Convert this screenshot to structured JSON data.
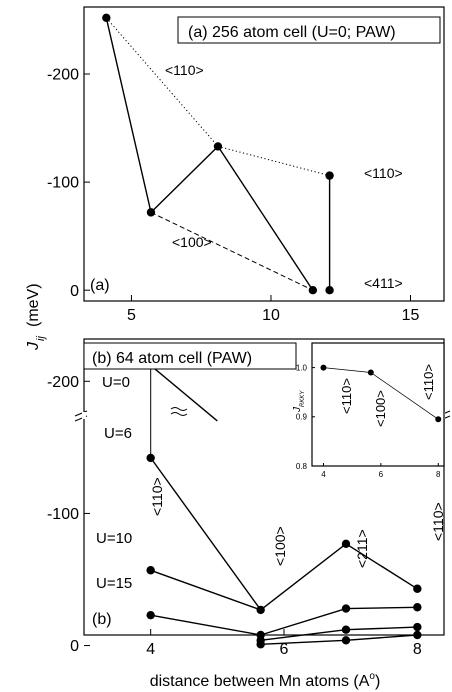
{
  "chart_data": [
    {
      "type": "scatter",
      "panel_label": "(a)",
      "legend_box": "(a) 256 atom cell (U=0; PAW)",
      "ylabel": "J",
      "ylabel_sub": "ij",
      "ylabel_unit": "(meV)",
      "xlim": [
        3.3,
        16.2
      ],
      "ylim": [
        10,
        -262
      ],
      "x_ticks": [
        5,
        10,
        15
      ],
      "x_tick_labels": [
        "5",
        "10",
        "15"
      ],
      "y_ticks": [
        0,
        -100,
        -200
      ],
      "y_tick_labels": [
        "0",
        "-100",
        "-200"
      ],
      "points": [
        {
          "x": 4.1,
          "y": -252
        },
        {
          "x": 5.7,
          "y": -72
        },
        {
          "x": 8.1,
          "y": -133
        },
        {
          "x": 11.5,
          "y": 0
        },
        {
          "x": 12.1,
          "y": -106
        },
        {
          "x": 12.1,
          "y": 0
        }
      ],
      "solid_path": [
        [
          4.1,
          -252
        ],
        [
          5.7,
          -72
        ],
        [
          8.1,
          -133
        ],
        [
          11.5,
          0
        ]
      ],
      "solid_vertical": [
        [
          12.1,
          -106
        ],
        [
          12.1,
          0
        ]
      ],
      "dotted_path": [
        [
          4.1,
          -252
        ],
        [
          8.1,
          -133
        ],
        [
          12.1,
          -106
        ]
      ],
      "dashed_path": [
        [
          5.7,
          -72
        ],
        [
          11.5,
          0
        ]
      ],
      "annotations": [
        "<110>",
        "<100>",
        "<110>",
        "<411>"
      ]
    },
    {
      "type": "line",
      "panel_label": "(b)",
      "legend_box": "(b) 64 atom cell (PAW)",
      "xlabel": "distance between Mn atoms (A",
      "xlabel_sup": "o",
      "xlabel_end": ")",
      "xlim": [
        3.0,
        8.4
      ],
      "ylim": [
        -8,
        -232
      ],
      "x_ticks": [
        4,
        6,
        8
      ],
      "x_tick_labels": [
        "4",
        "6",
        "8"
      ],
      "y_ticks": [
        0,
        -100,
        -200
      ],
      "y_tick_labels": [
        "0",
        "-100",
        "-200"
      ],
      "axis_break": true,
      "x": [
        4.0,
        5.65,
        6.93,
        8.0
      ],
      "series": [
        {
          "name": "U=0",
          "values": [
            -212,
            null,
            null,
            null
          ]
        },
        {
          "name": "U=6",
          "values": [
            -142,
            -8,
            -12,
            -14
          ]
        },
        {
          "name": "U=10",
          "values": [
            -57,
            -27,
            -28,
            -29
          ]
        },
        {
          "name": "U=15",
          "values": [
            -23,
            -4,
            -28,
            -8
          ]
        }
      ],
      "top_series": [
        -57,
        -27,
        -77,
        -43
      ],
      "direction_labels": [
        "<110>",
        "<100>",
        "<211>",
        "<110>"
      ],
      "inset": {
        "ylabel": "J",
        "ylabel_sub": "RKKY",
        "xlim": [
          3.6,
          8.2
        ],
        "ylim": [
          0.8,
          1.05
        ],
        "x_ticks": [
          4,
          6,
          8
        ],
        "x_tick_labels": [
          "4",
          "6",
          "8"
        ],
        "y_ticks": [
          0.8,
          0.9,
          1.0
        ],
        "y_tick_labels": [
          "0.8",
          "0.9",
          "1.0"
        ],
        "x": [
          4.0,
          5.65,
          8.0
        ],
        "values": [
          1.0,
          0.99,
          0.895
        ],
        "labels": [
          "<110>",
          "<100>",
          "<110>"
        ]
      }
    }
  ]
}
